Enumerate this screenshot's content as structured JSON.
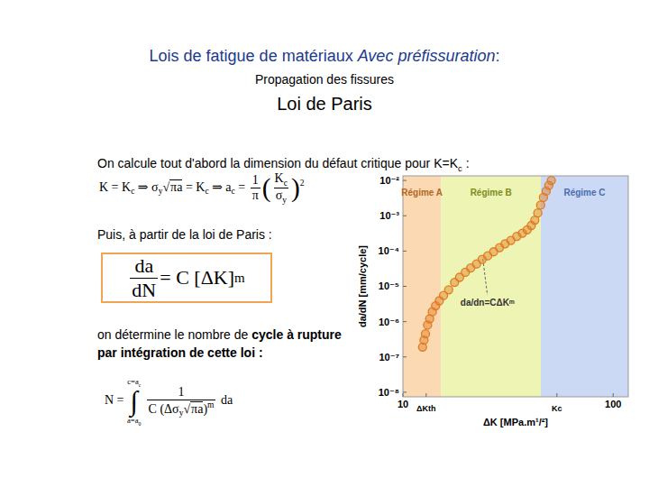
{
  "slide": {
    "title": [
      {
        "t": "Lois de fatigue de matériaux "
      },
      {
        "i": "Avec préfissuration"
      },
      {
        "t": ":"
      }
    ],
    "subtitle": "Propagation des fissures",
    "heading": "Loi de Paris",
    "p1": [
      {
        "t": "On calcule tout d'abord la dimension du défaut critique pour K=K"
      },
      {
        "sub": "c"
      },
      {
        "t": " :"
      }
    ],
    "formula1": [
      {
        "t": "K = K"
      },
      {
        "sub": "c"
      },
      {
        "t": " ⇒ σ"
      },
      {
        "sub": "y"
      },
      {
        "sqrt": {
          "sign": "√",
          "body": [
            {
              "t": "πa"
            }
          ]
        }
      },
      {
        "t": " = K"
      },
      {
        "sub": "c"
      },
      {
        "t": " ⇒ a"
      },
      {
        "sub": "c"
      },
      {
        "t": " = "
      },
      {
        "frac": {
          "num": [
            {
              "t": "1"
            }
          ],
          "den": [
            {
              "t": "π"
            }
          ]
        }
      },
      {
        "big": "("
      },
      {
        "frac": {
          "num": [
            {
              "t": "K"
            },
            {
              "sub": "c"
            }
          ],
          "den": [
            {
              "t": "σ"
            },
            {
              "sub": "y"
            }
          ]
        }
      },
      {
        "big": ")"
      },
      {
        "sup": "2"
      }
    ],
    "p2": [
      {
        "t": "Puis, à partir de la loi de Paris :"
      }
    ],
    "formula2": [
      {
        "frac": {
          "num": [
            {
              "t": "da"
            }
          ],
          "den": [
            {
              "t": "dN"
            }
          ]
        }
      },
      {
        "t": " = C [ΔK]"
      },
      {
        "sup": "m"
      }
    ],
    "p3": [
      {
        "t": "on détermine le nombre de "
      },
      {
        "b": "cycle à rupture"
      },
      {
        "br": true
      },
      {
        "b": "par intégration de cette loi :"
      }
    ],
    "formula3": [
      {
        "t": "N = "
      },
      {
        "int": {
          "sign": "∫",
          "upper": [
            {
              "t": "c=a"
            },
            {
              "sub": "c"
            }
          ],
          "lower": [
            {
              "t": "a=a"
            },
            {
              "sub": "0"
            }
          ]
        }
      },
      {
        "frac": {
          "num": [
            {
              "t": "1"
            }
          ],
          "den": [
            {
              "t": "C (Δσ"
            },
            {
              "sub": "y"
            },
            {
              "sqrt": {
                "sign": "√",
                "body": [
                  {
                    "t": "πa"
                  }
                ]
              }
            },
            {
              "t": ")"
            },
            {
              "sup": "m"
            }
          ]
        }
      },
      {
        "t": " da"
      }
    ]
  },
  "chart_data": {
    "type": "scatter",
    "log": true,
    "grid": false,
    "x_label": "ΔK [MPa.m¹/²]",
    "y_label": "da/dN [mm/cycle]",
    "xlim": [
      10,
      118
    ],
    "ylim": [
      7.4e-09,
      0.0135
    ],
    "xticks": [
      10,
      {
        "value": 12.9,
        "label": "ΔKth"
      },
      {
        "value": 54,
        "label": "Kc"
      },
      100
    ],
    "yticks": [
      {
        "value": 0.01,
        "label": "10⁻²"
      },
      {
        "value": 0.001,
        "label": "10⁻³"
      },
      {
        "value": 0.0001,
        "label": "10⁻⁴"
      },
      {
        "value": 1e-05,
        "label": "10⁻⁵"
      },
      {
        "value": 1e-06,
        "label": "10⁻⁶"
      },
      {
        "value": 1e-07,
        "label": "10⁻⁷"
      },
      {
        "value": 1e-08,
        "label": "10⁻⁸"
      }
    ],
    "regions": [
      {
        "label": "Régime A",
        "from": 10,
        "to": 15.2,
        "color": "#fbd9b3"
      },
      {
        "label": "Régime B",
        "from": 15.2,
        "to": 45.3,
        "color": "#eef4b4"
      },
      {
        "label": "Régime C",
        "from": 45.3,
        "to": 118,
        "color": "#cbd9f4"
      }
    ],
    "annotations": [
      {
        "text": "da/dn=CΔKᵐ",
        "x": 24,
        "y": 6e-05
      }
    ],
    "color": "#e07b22",
    "marker": "circle",
    "x": [
      12.4,
      12.6,
      12.8,
      13.1,
      13.4,
      13.8,
      14.3,
      14.9,
      15.6,
      16.5,
      17.6,
      18.6,
      19.8,
      21.0,
      22.4,
      23.8,
      25.3,
      27.0,
      28.8,
      30.6,
      32.6,
      34.8,
      37.0,
      39.0,
      40.8,
      42.4,
      43.8,
      45.2,
      46.6,
      48.0,
      49.4,
      50.8
    ],
    "values": [
      1.9e-07,
      3e-07,
      4.5e-07,
      8e-07,
      1.2e-06,
      1.9e-06,
      2.8e-06,
      3.9e-06,
      5.5e-06,
      8e-06,
      1.3e-05,
      1.8e-05,
      2.5e-05,
      3.3e-05,
      4.3e-05,
      5.8e-05,
      7.3e-05,
      9.5e-05,
      0.000125,
      0.00016,
      0.0002,
      0.00026,
      0.00032,
      0.0004,
      0.00053,
      0.00075,
      0.0012,
      0.002,
      0.0033,
      0.005,
      0.0072,
      0.01
    ]
  }
}
